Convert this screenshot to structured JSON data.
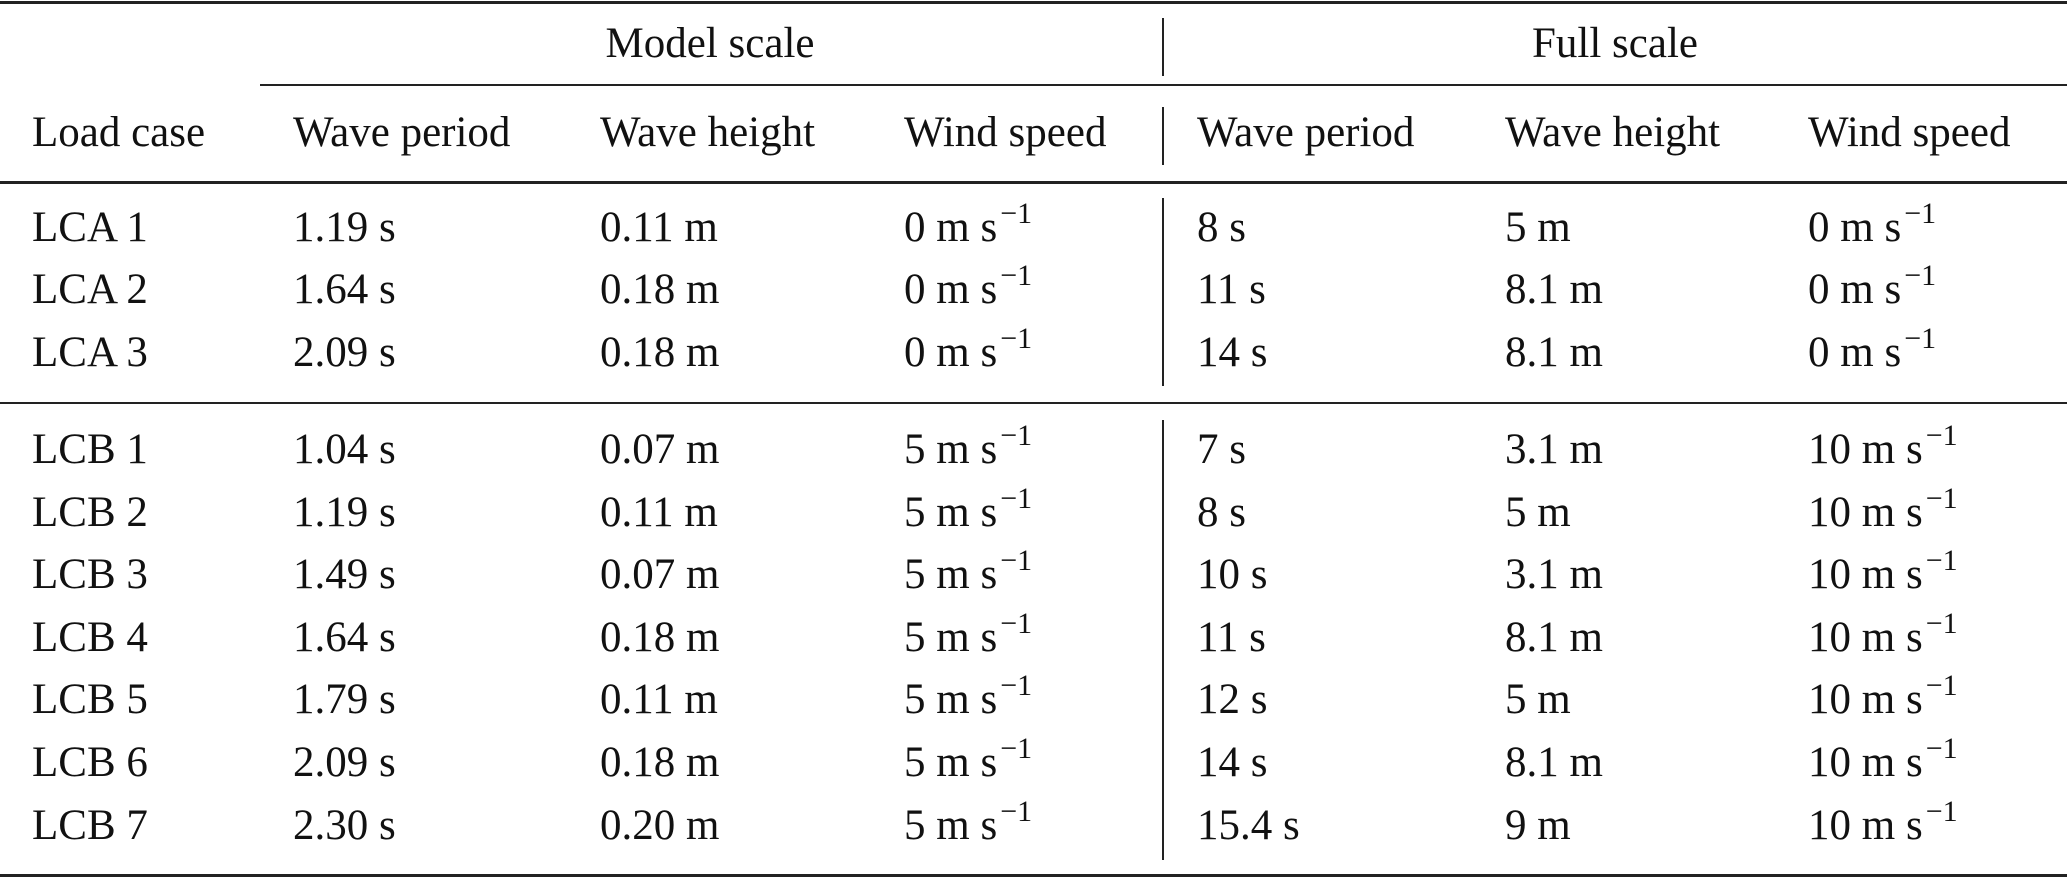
{
  "table": {
    "groups": {
      "model": "Model scale",
      "full": "Full scale"
    },
    "headers": [
      "Load case",
      "Wave period",
      "Wave height",
      "Wind speed",
      "Wave period",
      "Wave height",
      "Wind speed"
    ],
    "sections": [
      [
        {
          "case": "LCA 1",
          "m_period": "1.19 s",
          "m_height": "0.11 m",
          "m_wind": {
            "v": "0 m s",
            "exp": "−1"
          },
          "f_period": "8 s",
          "f_height": "5 m",
          "f_wind": {
            "v": "0 m s",
            "exp": "−1"
          }
        },
        {
          "case": "LCA 2",
          "m_period": "1.64 s",
          "m_height": "0.18 m",
          "m_wind": {
            "v": "0 m s",
            "exp": "−1"
          },
          "f_period": "11 s",
          "f_height": "8.1 m",
          "f_wind": {
            "v": "0 m s",
            "exp": "−1"
          }
        },
        {
          "case": "LCA 3",
          "m_period": "2.09 s",
          "m_height": "0.18 m",
          "m_wind": {
            "v": "0 m s",
            "exp": "−1"
          },
          "f_period": "14 s",
          "f_height": "8.1 m",
          "f_wind": {
            "v": "0 m s",
            "exp": "−1"
          }
        }
      ],
      [
        {
          "case": "LCB 1",
          "m_period": "1.04 s",
          "m_height": "0.07 m",
          "m_wind": {
            "v": "5 m s",
            "exp": "−1"
          },
          "f_period": "7 s",
          "f_height": "3.1 m",
          "f_wind": {
            "v": "10 m s",
            "exp": "−1"
          }
        },
        {
          "case": "LCB 2",
          "m_period": "1.19 s",
          "m_height": "0.11 m",
          "m_wind": {
            "v": "5 m s",
            "exp": "−1"
          },
          "f_period": "8 s",
          "f_height": "5 m",
          "f_wind": {
            "v": "10 m s",
            "exp": "−1"
          }
        },
        {
          "case": "LCB 3",
          "m_period": "1.49 s",
          "m_height": "0.07 m",
          "m_wind": {
            "v": "5 m s",
            "exp": "−1"
          },
          "f_period": "10 s",
          "f_height": "3.1 m",
          "f_wind": {
            "v": "10 m s",
            "exp": "−1"
          }
        },
        {
          "case": "LCB 4",
          "m_period": "1.64 s",
          "m_height": "0.18 m",
          "m_wind": {
            "v": "5 m s",
            "exp": "−1"
          },
          "f_period": "11 s",
          "f_height": "8.1 m",
          "f_wind": {
            "v": "10 m s",
            "exp": "−1"
          }
        },
        {
          "case": "LCB 5",
          "m_period": "1.79 s",
          "m_height": "0.11 m",
          "m_wind": {
            "v": "5 m s",
            "exp": "−1"
          },
          "f_period": "12 s",
          "f_height": "5 m",
          "f_wind": {
            "v": "10 m s",
            "exp": "−1"
          }
        },
        {
          "case": "LCB 6",
          "m_period": "2.09 s",
          "m_height": "0.18 m",
          "m_wind": {
            "v": "5 m s",
            "exp": "−1"
          },
          "f_period": "14 s",
          "f_height": "8.1 m",
          "f_wind": {
            "v": "10 m s",
            "exp": "−1"
          }
        },
        {
          "case": "LCB 7",
          "m_period": "2.30 s",
          "m_height": "0.20 m",
          "m_wind": {
            "v": "5 m s",
            "exp": "−1"
          },
          "f_period": "15.4 s",
          "f_height": "9 m",
          "f_wind": {
            "v": "10 m s",
            "exp": "−1"
          }
        }
      ]
    ]
  }
}
